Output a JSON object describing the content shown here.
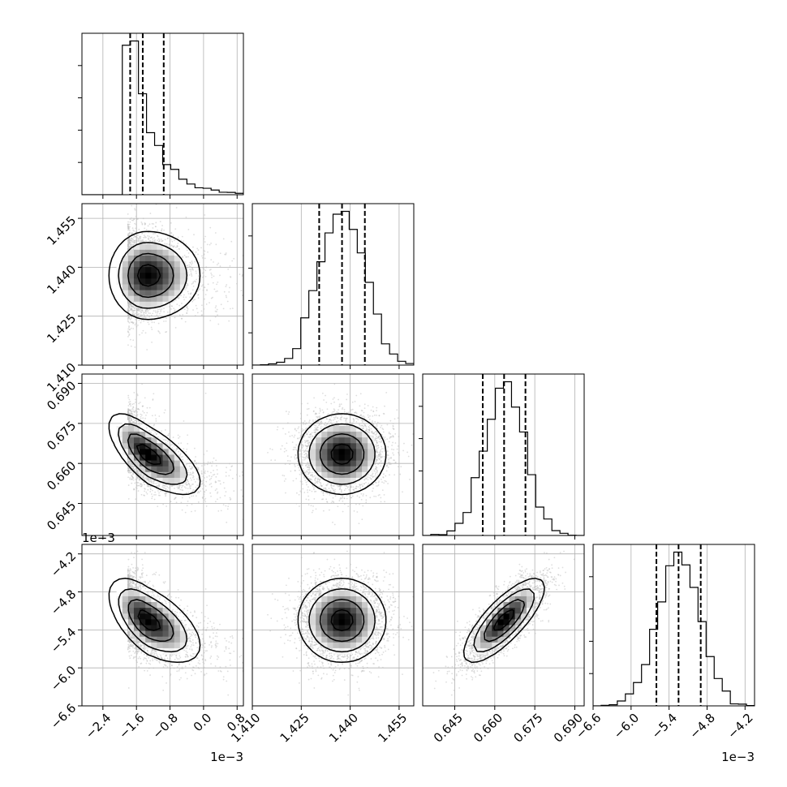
{
  "chart_data": {
    "type": "corner",
    "grid": true,
    "colors": {
      "line": "#000000",
      "grid": "#b0b0b0",
      "points": "#bdbdbd"
    },
    "parameters": [
      {
        "range": [
          -2.9,
          0.95
        ],
        "ticks": [
          -2.4,
          -1.6,
          -0.8,
          0.0,
          0.8
        ],
        "tick_labels": [
          "−2.4",
          "−1.6",
          "−0.8",
          "0.0",
          "0.8"
        ],
        "offset_label": "1e−3",
        "mean": -1.35,
        "sd": 0.45,
        "skew": 0.45,
        "quantiles": [
          -1.75,
          -1.45,
          -0.95
        ]
      },
      {
        "range": [
          1.41,
          1.4595
        ],
        "ticks": [
          1.41,
          1.425,
          1.44,
          1.455
        ],
        "tick_labels": [
          "1.410",
          "1.425",
          "1.440",
          "1.455"
        ],
        "offset_label": "",
        "mean": 1.4375,
        "sd": 0.0067,
        "skew": 0,
        "quantiles": [
          1.4305,
          1.4375,
          1.4445
        ]
      },
      {
        "range": [
          0.633,
          0.6935
        ],
        "ticks": [
          0.645,
          0.66,
          0.675,
          0.69
        ],
        "tick_labels": [
          "0.645",
          "0.660",
          "0.675",
          "0.690"
        ],
        "offset_label": "",
        "mean": 0.6635,
        "sd": 0.0075,
        "skew": 0,
        "quantiles": [
          0.6555,
          0.6635,
          0.6715
        ]
      },
      {
        "range": [
          -6.6,
          -4.05
        ],
        "ticks": [
          -6.6,
          -6.0,
          -5.4,
          -4.8,
          -4.2
        ],
        "tick_labels": [
          "−6.6",
          "−6.0",
          "−5.4",
          "−4.8",
          "−4.2"
        ],
        "offset_label": "1e−3",
        "mean": -5.25,
        "sd": 0.33,
        "skew": 0,
        "quantiles": [
          -5.6,
          -5.25,
          -4.9
        ]
      }
    ],
    "correlations": [
      [
        1,
        0,
        -0.7,
        -0.6
      ],
      [
        0,
        1,
        0,
        0
      ],
      [
        -0.7,
        0,
        1,
        0.78
      ],
      [
        -0.6,
        0,
        0.78,
        1
      ]
    ],
    "hist_bins": 20,
    "contour_levels": [
      0.5,
      1.0,
      1.5,
      2.0
    ],
    "quantile_probs": [
      0.16,
      0.5,
      0.84
    ],
    "n_samples": 3500
  }
}
